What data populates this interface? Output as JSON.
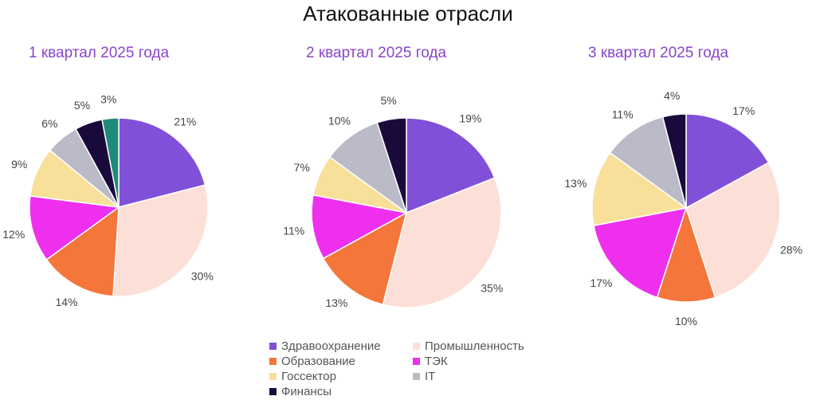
{
  "title": "Атакованные отрасли",
  "legend": [
    {
      "name": "Здравоохранение",
      "color": "#8150d8"
    },
    {
      "name": "Промышленность",
      "color": "#fce0d8"
    },
    {
      "name": "Образование",
      "color": "#f5763a"
    },
    {
      "name": "ТЭК",
      "color": "#ee30ee"
    },
    {
      "name": "Госсектор",
      "color": "#f8e09a"
    },
    {
      "name": "IT",
      "color": "#bbbbc8"
    },
    {
      "name": "Финансы",
      "color": "#1a0a3c"
    }
  ],
  "chart_data": [
    {
      "type": "pie",
      "title": "1 квартал 2025 года",
      "slices": [
        {
          "label": "Здравоохранение",
          "value": 21,
          "color": "#8150d8"
        },
        {
          "label": "Промышленность",
          "value": 30,
          "color": "#fce0d8"
        },
        {
          "label": "Образование",
          "value": 14,
          "color": "#f5763a"
        },
        {
          "label": "ТЭК",
          "value": 12,
          "color": "#ee30ee"
        },
        {
          "label": "Госсектор",
          "value": 9,
          "color": "#f8e09a"
        },
        {
          "label": "IT",
          "value": 6,
          "color": "#bbbbc8"
        },
        {
          "label": "Финансы",
          "value": 5,
          "color": "#1a0a3c"
        },
        {
          "label": "",
          "value": 3,
          "color": "#1f8a7a"
        }
      ]
    },
    {
      "type": "pie",
      "title": "2 квартал 2025 года",
      "slices": [
        {
          "label": "Здравоохранение",
          "value": 19,
          "color": "#8150d8"
        },
        {
          "label": "Промышленность",
          "value": 35,
          "color": "#fce0d8"
        },
        {
          "label": "Образование",
          "value": 13,
          "color": "#f5763a"
        },
        {
          "label": "ТЭК",
          "value": 11,
          "color": "#ee30ee"
        },
        {
          "label": "Госсектор",
          "value": 7,
          "color": "#f8e09a"
        },
        {
          "label": "IT",
          "value": 10,
          "color": "#bbbbc8"
        },
        {
          "label": "Финансы",
          "value": 5,
          "color": "#1a0a3c"
        }
      ]
    },
    {
      "type": "pie",
      "title": "3 квартал 2025 года",
      "slices": [
        {
          "label": "Здравоохранение",
          "value": 17,
          "color": "#8150d8"
        },
        {
          "label": "Промышленность",
          "value": 28,
          "color": "#fce0d8"
        },
        {
          "label": "Образование",
          "value": 10,
          "color": "#f5763a"
        },
        {
          "label": "ТЭК",
          "value": 17,
          "color": "#ee30ee"
        },
        {
          "label": "Госсектор",
          "value": 13,
          "color": "#f8e09a"
        },
        {
          "label": "IT",
          "value": 11,
          "color": "#bbbbc8"
        },
        {
          "label": "Финансы",
          "value": 4,
          "color": "#1a0a3c"
        }
      ]
    }
  ]
}
